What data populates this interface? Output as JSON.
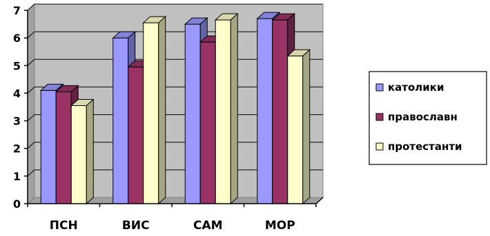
{
  "chart_data": {
    "type": "bar",
    "categories": [
      "ПСН",
      "ВИС",
      "САМ",
      "МОР"
    ],
    "series": [
      {
        "name": "католики",
        "values": [
          4.1,
          6.0,
          6.5,
          6.7
        ],
        "color": "#9999FF"
      },
      {
        "name": "православн",
        "values": [
          4.05,
          4.95,
          5.85,
          6.65
        ],
        "color": "#993366"
      },
      {
        "name": "протестанти",
        "values": [
          3.55,
          6.55,
          6.65,
          5.35
        ],
        "color": "#FFFFCC"
      }
    ],
    "ylim": [
      0,
      7
    ],
    "yticks": [
      0,
      1,
      2,
      3,
      4,
      5,
      6,
      7
    ],
    "grid": true,
    "style": "3d-clustered-column",
    "wall_color": "#C0C0C0",
    "legend_position": "right"
  }
}
